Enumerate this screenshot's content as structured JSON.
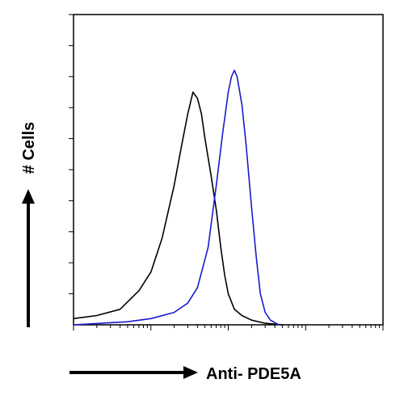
{
  "chart_data": {
    "type": "line",
    "xlabel": "Anti- PDE5A",
    "ylabel": "# Cells",
    "x_scale": "log",
    "xlim": [
      1,
      10000
    ],
    "ylim": [
      0,
      100
    ],
    "grid": false,
    "legend": "none",
    "series": [
      {
        "color": "#000000",
        "points": [
          [
            1,
            2
          ],
          [
            2,
            3
          ],
          [
            4,
            5
          ],
          [
            7,
            11
          ],
          [
            10,
            17
          ],
          [
            14,
            28
          ],
          [
            20,
            45
          ],
          [
            25,
            58
          ],
          [
            30,
            68
          ],
          [
            35,
            75
          ],
          [
            40,
            73
          ],
          [
            45,
            68
          ],
          [
            50,
            60
          ],
          [
            60,
            48
          ],
          [
            70,
            37
          ],
          [
            80,
            25
          ],
          [
            90,
            16
          ],
          [
            100,
            10
          ],
          [
            120,
            5
          ],
          [
            150,
            3
          ],
          [
            200,
            1.5
          ],
          [
            300,
            0.5
          ],
          [
            500,
            0
          ]
        ]
      },
      {
        "color": "#1a1acc",
        "points": [
          [
            1,
            0
          ],
          [
            5,
            1
          ],
          [
            10,
            2
          ],
          [
            20,
            4
          ],
          [
            30,
            7
          ],
          [
            40,
            12
          ],
          [
            55,
            25
          ],
          [
            70,
            45
          ],
          [
            85,
            62
          ],
          [
            100,
            75
          ],
          [
            110,
            80
          ],
          [
            120,
            82
          ],
          [
            130,
            80
          ],
          [
            150,
            71
          ],
          [
            170,
            58
          ],
          [
            200,
            38
          ],
          [
            230,
            22
          ],
          [
            260,
            10
          ],
          [
            300,
            4
          ],
          [
            350,
            1.5
          ],
          [
            450,
            0
          ]
        ]
      }
    ]
  }
}
